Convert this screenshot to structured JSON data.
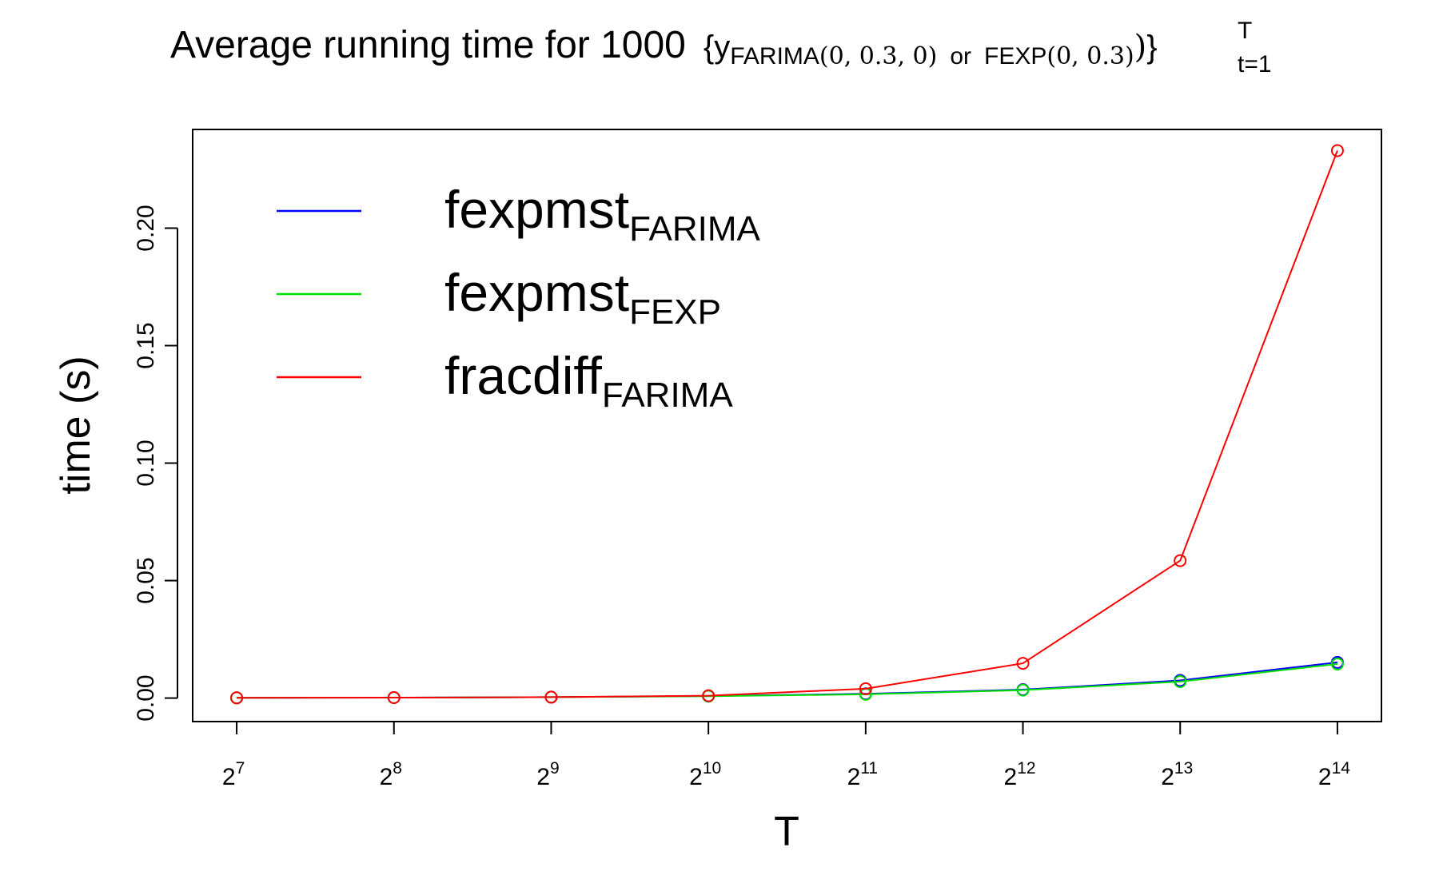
{
  "chart_data": {
    "type": "line",
    "title": {
      "prefix": "Average running time for 1000",
      "open": "{y",
      "sub1": "FARIMA",
      "sub1_args": "(0, 0.3, 0)",
      "or_word": "or",
      "sub2": "FEXP",
      "sub2_args": "(0, 0.3)",
      "close_paren": ")",
      "close": "}",
      "superscript": "T",
      "subscript": "t=1"
    },
    "xlabel": "T",
    "ylabel": "time (s)",
    "x": [
      7,
      8,
      9,
      10,
      11,
      12,
      13,
      14
    ],
    "x_tick_labels": [
      {
        "base": "2",
        "exp": "7"
      },
      {
        "base": "2",
        "exp": "8"
      },
      {
        "base": "2",
        "exp": "9"
      },
      {
        "base": "2",
        "exp": "10"
      },
      {
        "base": "2",
        "exp": "11"
      },
      {
        "base": "2",
        "exp": "12"
      },
      {
        "base": "2",
        "exp": "13"
      },
      {
        "base": "2",
        "exp": "14"
      }
    ],
    "xlim": [
      6.72,
      14.28
    ],
    "ylim": [
      -0.01,
      0.242
    ],
    "y_ticks": [
      "0.00",
      "0.05",
      "0.10",
      "0.15",
      "0.20"
    ],
    "grid": false,
    "legend_position": "top-left",
    "series": [
      {
        "name": "fexpmst",
        "name_sub": "FARIMA",
        "color": "#0000ff",
        "values": [
          0.0001,
          0.0002,
          0.0004,
          0.0009,
          0.0018,
          0.0036,
          0.0075,
          0.0152
        ]
      },
      {
        "name": "fexpmst",
        "name_sub": "FEXP",
        "color": "#00e000",
        "values": [
          0.0001,
          0.0002,
          0.0004,
          0.0008,
          0.0016,
          0.0034,
          0.007,
          0.0145
        ]
      },
      {
        "name": "fracdiff",
        "name_sub": "FARIMA",
        "color": "#ff0000",
        "values": [
          0.0001,
          0.0002,
          0.0004,
          0.001,
          0.004,
          0.0148,
          0.0585,
          0.233
        ]
      }
    ]
  }
}
